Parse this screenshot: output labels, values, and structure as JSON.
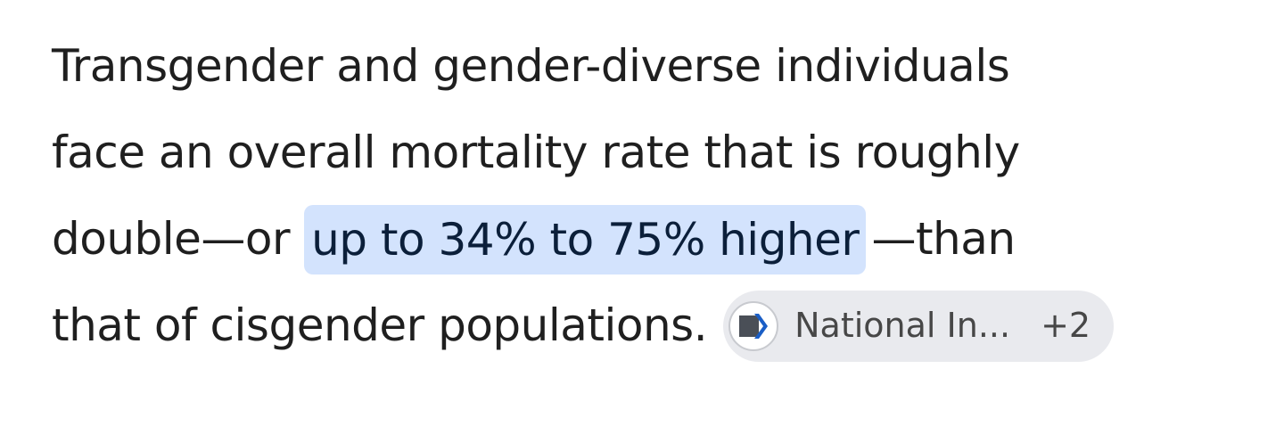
{
  "paragraph": {
    "lines": [
      [
        "Transgender and gender-diverse individuals"
      ],
      [
        "face an overall mortality rate that is roughly"
      ],
      [
        "double—or",
        "up to 34% to 75% higher",
        "—than"
      ],
      [
        "that of cisgender populations."
      ]
    ]
  },
  "citation": {
    "label": "National In...",
    "count": "+2"
  }
}
